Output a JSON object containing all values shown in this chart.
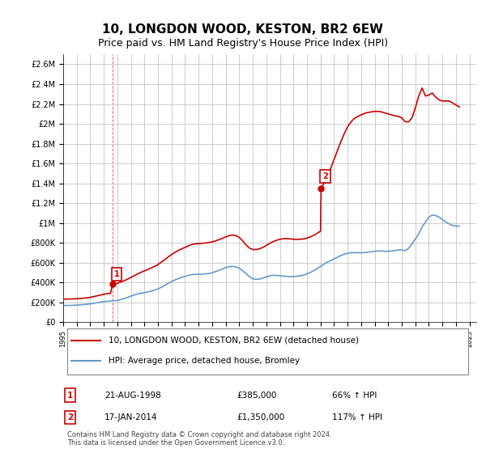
{
  "title": "10, LONGDON WOOD, KESTON, BR2 6EW",
  "subtitle": "Price paid vs. HM Land Registry's House Price Index (HPI)",
  "title_fontsize": 11,
  "subtitle_fontsize": 9,
  "ylim": [
    0,
    2700000
  ],
  "yticks": [
    0,
    200000,
    400000,
    600000,
    800000,
    1000000,
    1200000,
    1400000,
    1600000,
    1800000,
    2000000,
    2200000,
    2400000,
    2600000
  ],
  "ytick_labels": [
    "£0",
    "£200K",
    "£400K",
    "£600K",
    "£800K",
    "£1M",
    "£1.2M",
    "£1.4M",
    "£1.6M",
    "£1.8M",
    "£2M",
    "£2.2M",
    "£2.4M",
    "£2.6M"
  ],
  "xlim_start": 1995.0,
  "xlim_end": 2025.5,
  "background_color": "#ffffff",
  "grid_color": "#cccccc",
  "property_line_color": "#cc0000",
  "hpi_line_color": "#6699cc",
  "sale1_x": 1998.64,
  "sale1_y": 385000,
  "sale2_x": 2014.04,
  "sale2_y": 1350000,
  "legend_property": "10, LONGDON WOOD, KESTON, BR2 6EW (detached house)",
  "legend_hpi": "HPI: Average price, detached house, Bromley",
  "table_row1": [
    "1",
    "21-AUG-1998",
    "£385,000",
    "66% ↑ HPI"
  ],
  "table_row2": [
    "2",
    "17-JAN-2014",
    "£1,350,000",
    "117% ↑ HPI"
  ],
  "footer": "Contains HM Land Registry data © Crown copyright and database right 2024.\nThis data is licensed under the Open Government Licence v3.0.",
  "hpi_data_x": [
    1995.0,
    1995.25,
    1995.5,
    1995.75,
    1996.0,
    1996.25,
    1996.5,
    1996.75,
    1997.0,
    1997.25,
    1997.5,
    1997.75,
    1998.0,
    1998.25,
    1998.5,
    1998.75,
    1999.0,
    1999.25,
    1999.5,
    1999.75,
    2000.0,
    2000.25,
    2000.5,
    2000.75,
    2001.0,
    2001.25,
    2001.5,
    2001.75,
    2002.0,
    2002.25,
    2002.5,
    2002.75,
    2003.0,
    2003.25,
    2003.5,
    2003.75,
    2004.0,
    2004.25,
    2004.5,
    2004.75,
    2005.0,
    2005.25,
    2005.5,
    2005.75,
    2006.0,
    2006.25,
    2006.5,
    2006.75,
    2007.0,
    2007.25,
    2007.5,
    2007.75,
    2008.0,
    2008.25,
    2008.5,
    2008.75,
    2009.0,
    2009.25,
    2009.5,
    2009.75,
    2010.0,
    2010.25,
    2010.5,
    2010.75,
    2011.0,
    2011.25,
    2011.5,
    2011.75,
    2012.0,
    2012.25,
    2012.5,
    2012.75,
    2013.0,
    2013.25,
    2013.5,
    2013.75,
    2014.0,
    2014.25,
    2014.5,
    2014.75,
    2015.0,
    2015.25,
    2015.5,
    2015.75,
    2016.0,
    2016.25,
    2016.5,
    2016.75,
    2017.0,
    2017.25,
    2017.5,
    2017.75,
    2018.0,
    2018.25,
    2018.5,
    2018.75,
    2019.0,
    2019.25,
    2019.5,
    2019.75,
    2020.0,
    2020.25,
    2020.5,
    2020.75,
    2021.0,
    2021.25,
    2021.5,
    2021.75,
    2022.0,
    2022.25,
    2022.5,
    2022.75,
    2023.0,
    2023.25,
    2023.5,
    2023.75,
    2024.0,
    2024.25
  ],
  "hpi_data_y": [
    168000,
    168500,
    169000,
    170000,
    172000,
    175000,
    178000,
    181000,
    185000,
    190000,
    196000,
    202000,
    207000,
    211000,
    214000,
    216000,
    220000,
    228000,
    238000,
    250000,
    263000,
    275000,
    285000,
    292000,
    298000,
    305000,
    314000,
    323000,
    335000,
    352000,
    372000,
    392000,
    410000,
    426000,
    440000,
    452000,
    462000,
    472000,
    480000,
    483000,
    483000,
    484000,
    487000,
    491000,
    498000,
    510000,
    523000,
    537000,
    550000,
    560000,
    563000,
    558000,
    545000,
    520000,
    490000,
    460000,
    438000,
    432000,
    435000,
    445000,
    458000,
    468000,
    473000,
    472000,
    468000,
    465000,
    462000,
    460000,
    460000,
    463000,
    468000,
    476000,
    487000,
    502000,
    520000,
    540000,
    562000,
    585000,
    605000,
    622000,
    638000,
    655000,
    672000,
    685000,
    695000,
    700000,
    702000,
    700000,
    700000,
    702000,
    706000,
    710000,
    715000,
    718000,
    718000,
    715000,
    715000,
    718000,
    722000,
    728000,
    730000,
    720000,
    745000,
    790000,
    840000,
    890000,
    960000,
    1010000,
    1060000,
    1080000,
    1075000,
    1060000,
    1035000,
    1010000,
    990000,
    975000,
    968000,
    970000
  ],
  "property_segments_x": [
    [
      1995.0,
      1995.25,
      1995.5,
      1995.75,
      1996.0,
      1996.25,
      1996.5,
      1996.75,
      1997.0,
      1997.25,
      1997.5,
      1997.75,
      1998.0,
      1998.25,
      1998.5,
      1998.64
    ],
    [
      1998.64,
      1999.0,
      1999.25,
      1999.5,
      1999.75,
      2000.0,
      2000.25,
      2000.5,
      2000.75,
      2001.0,
      2001.25,
      2001.5,
      2001.75,
      2002.0,
      2002.25,
      2002.5,
      2002.75,
      2003.0,
      2003.25,
      2003.5,
      2003.75,
      2004.0,
      2004.25,
      2004.5,
      2004.75,
      2005.0,
      2005.25,
      2005.5,
      2005.75,
      2006.0,
      2006.25,
      2006.5,
      2006.75,
      2007.0,
      2007.25,
      2007.5,
      2007.75,
      2008.0,
      2008.25,
      2008.5,
      2008.75,
      2009.0,
      2009.25,
      2009.5,
      2009.75,
      2010.0,
      2010.25,
      2010.5,
      2010.75,
      2011.0,
      2011.25,
      2011.5,
      2011.75,
      2012.0,
      2012.25,
      2012.5,
      2012.75,
      2013.0,
      2013.25,
      2013.5,
      2013.75,
      2014.0,
      2014.04
    ],
    [
      2014.04,
      2014.25,
      2014.5,
      2014.75,
      2015.0,
      2015.25,
      2015.5,
      2015.75,
      2016.0,
      2016.25,
      2016.5,
      2016.75,
      2017.0,
      2017.25,
      2017.5,
      2017.75,
      2018.0,
      2018.25,
      2018.5,
      2018.75,
      2019.0,
      2019.25,
      2019.5,
      2019.75,
      2020.0,
      2020.25,
      2020.5,
      2020.75,
      2021.0,
      2021.25,
      2021.5,
      2021.75,
      2022.0,
      2022.25,
      2022.5,
      2022.75,
      2023.0,
      2023.25,
      2023.5,
      2023.75,
      2024.0,
      2024.25
    ]
  ],
  "property_segments_y": [
    [
      232000,
      233000,
      234000,
      235000,
      237000,
      239000,
      242000,
      246000,
      251000,
      258000,
      266000,
      274000,
      282000,
      287000,
      292000,
      385000
    ],
    [
      385000,
      392000,
      405000,
      418000,
      434000,
      451000,
      469000,
      487000,
      503000,
      518000,
      532000,
      547000,
      563000,
      582000,
      605000,
      631000,
      657000,
      682000,
      704000,
      723000,
      740000,
      755000,
      770000,
      783000,
      790000,
      793000,
      795000,
      798000,
      803000,
      810000,
      820000,
      832000,
      845000,
      860000,
      872000,
      878000,
      875000,
      855000,
      820000,
      780000,
      748000,
      733000,
      732000,
      740000,
      755000,
      775000,
      795000,
      812000,
      826000,
      836000,
      842000,
      843000,
      840000,
      836000,
      835000,
      836000,
      840000,
      848000,
      860000,
      876000,
      896000,
      918000,
      1350000
    ],
    [
      1350000,
      1400000,
      1470000,
      1550000,
      1640000,
      1730000,
      1820000,
      1900000,
      1970000,
      2020000,
      2055000,
      2075000,
      2090000,
      2105000,
      2115000,
      2120000,
      2125000,
      2125000,
      2120000,
      2110000,
      2100000,
      2090000,
      2080000,
      2075000,
      2060000,
      2020000,
      2020000,
      2060000,
      2160000,
      2280000,
      2360000,
      2280000,
      2290000,
      2310000,
      2270000,
      2240000,
      2230000,
      2230000,
      2230000,
      2210000,
      2190000,
      2170000
    ]
  ]
}
